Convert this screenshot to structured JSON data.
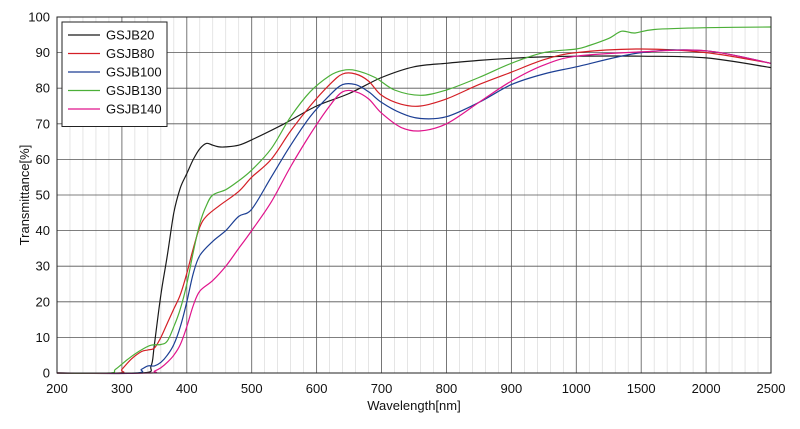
{
  "chart_data": {
    "type": "line",
    "xlabel": "Wavelength[nm]",
    "ylabel": "Transmittance[%]",
    "ylim": [
      0,
      100
    ],
    "y_ticks": [
      0,
      10,
      20,
      30,
      40,
      50,
      60,
      70,
      80,
      90,
      100
    ],
    "x_ticks": [
      200,
      300,
      400,
      500,
      600,
      700,
      800,
      900,
      1000,
      1500,
      2000,
      2500
    ],
    "x_scale": "piecewise: linear 200-1000 nm, then linear 1000-2500 nm compressed (1000 nm per two major divisions)",
    "grid": true,
    "legend_position": "top-left",
    "series": [
      {
        "name": "GSJB20",
        "color": "#1a1a1a",
        "points": [
          [
            200,
            0
          ],
          [
            330,
            0
          ],
          [
            345,
            2
          ],
          [
            350,
            8
          ],
          [
            360,
            22
          ],
          [
            370,
            33
          ],
          [
            380,
            45
          ],
          [
            390,
            52
          ],
          [
            400,
            56
          ],
          [
            410,
            60
          ],
          [
            420,
            63
          ],
          [
            430,
            64.5
          ],
          [
            440,
            64
          ],
          [
            450,
            63.5
          ],
          [
            460,
            63.5
          ],
          [
            480,
            64
          ],
          [
            500,
            65.5
          ],
          [
            550,
            70
          ],
          [
            600,
            75
          ],
          [
            650,
            78.5
          ],
          [
            700,
            83
          ],
          [
            750,
            86
          ],
          [
            800,
            87
          ],
          [
            850,
            87.8
          ],
          [
            900,
            88.4
          ],
          [
            950,
            88.8
          ],
          [
            1000,
            89
          ],
          [
            1500,
            89
          ],
          [
            2000,
            88.5
          ],
          [
            2500,
            85.8
          ]
        ]
      },
      {
        "name": "GSJB80",
        "color": "#d41f26",
        "points": [
          [
            200,
            0
          ],
          [
            295,
            0
          ],
          [
            300,
            1
          ],
          [
            315,
            4
          ],
          [
            330,
            6
          ],
          [
            340,
            6.5
          ],
          [
            350,
            7
          ],
          [
            360,
            10
          ],
          [
            370,
            14
          ],
          [
            380,
            18
          ],
          [
            390,
            22
          ],
          [
            400,
            28
          ],
          [
            410,
            35
          ],
          [
            420,
            41
          ],
          [
            430,
            44
          ],
          [
            450,
            47
          ],
          [
            480,
            51
          ],
          [
            500,
            55
          ],
          [
            530,
            60
          ],
          [
            560,
            68
          ],
          [
            590,
            75
          ],
          [
            620,
            81
          ],
          [
            640,
            84
          ],
          [
            660,
            84
          ],
          [
            680,
            82
          ],
          [
            700,
            78
          ],
          [
            730,
            75.5
          ],
          [
            760,
            75
          ],
          [
            800,
            77
          ],
          [
            850,
            81
          ],
          [
            900,
            84.5
          ],
          [
            950,
            88
          ],
          [
            1000,
            90
          ],
          [
            1500,
            91
          ],
          [
            2000,
            90
          ],
          [
            2500,
            87
          ]
        ]
      },
      {
        "name": "GSJB100",
        "color": "#1c3f94",
        "points": [
          [
            200,
            0
          ],
          [
            320,
            0
          ],
          [
            330,
            1
          ],
          [
            340,
            2
          ],
          [
            350,
            2
          ],
          [
            360,
            3
          ],
          [
            370,
            5
          ],
          [
            380,
            8
          ],
          [
            390,
            13
          ],
          [
            400,
            20
          ],
          [
            410,
            28
          ],
          [
            420,
            33
          ],
          [
            440,
            37
          ],
          [
            460,
            40
          ],
          [
            480,
            44
          ],
          [
            500,
            46
          ],
          [
            530,
            55
          ],
          [
            560,
            64
          ],
          [
            590,
            72
          ],
          [
            620,
            78
          ],
          [
            640,
            81
          ],
          [
            660,
            81
          ],
          [
            680,
            79
          ],
          [
            700,
            76
          ],
          [
            730,
            73
          ],
          [
            760,
            71.5
          ],
          [
            800,
            72
          ],
          [
            850,
            76
          ],
          [
            900,
            81
          ],
          [
            950,
            84
          ],
          [
            1000,
            86
          ],
          [
            1500,
            90
          ],
          [
            2000,
            90.5
          ],
          [
            2500,
            87
          ]
        ]
      },
      {
        "name": "GSJB130",
        "color": "#4caf38",
        "points": [
          [
            200,
            0
          ],
          [
            280,
            0
          ],
          [
            290,
            1
          ],
          [
            310,
            4
          ],
          [
            330,
            6.5
          ],
          [
            345,
            7.8
          ],
          [
            360,
            8
          ],
          [
            370,
            9
          ],
          [
            380,
            13
          ],
          [
            390,
            18
          ],
          [
            400,
            25
          ],
          [
            410,
            34
          ],
          [
            420,
            42
          ],
          [
            430,
            47
          ],
          [
            440,
            50
          ],
          [
            460,
            51.5
          ],
          [
            480,
            54
          ],
          [
            500,
            57
          ],
          [
            530,
            63
          ],
          [
            560,
            72
          ],
          [
            590,
            79
          ],
          [
            620,
            83.5
          ],
          [
            640,
            85
          ],
          [
            660,
            85
          ],
          [
            690,
            83
          ],
          [
            720,
            79.5
          ],
          [
            760,
            78
          ],
          [
            800,
            79.5
          ],
          [
            850,
            83
          ],
          [
            900,
            87
          ],
          [
            950,
            90
          ],
          [
            1000,
            91
          ],
          [
            1100,
            92
          ],
          [
            1250,
            94
          ],
          [
            1350,
            96
          ],
          [
            1450,
            95.5
          ],
          [
            1600,
            96.5
          ],
          [
            2000,
            97
          ],
          [
            2500,
            97.2
          ]
        ]
      },
      {
        "name": "GSJB140",
        "color": "#e0148c",
        "points": [
          [
            200,
            0
          ],
          [
            340,
            0
          ],
          [
            350,
            0.5
          ],
          [
            360,
            1.5
          ],
          [
            370,
            3
          ],
          [
            380,
            5
          ],
          [
            390,
            8
          ],
          [
            400,
            13
          ],
          [
            410,
            19
          ],
          [
            420,
            23
          ],
          [
            440,
            26
          ],
          [
            460,
            30
          ],
          [
            480,
            35
          ],
          [
            500,
            40
          ],
          [
            530,
            48
          ],
          [
            560,
            58
          ],
          [
            590,
            67
          ],
          [
            620,
            75
          ],
          [
            640,
            79
          ],
          [
            660,
            79
          ],
          [
            680,
            77
          ],
          [
            700,
            73
          ],
          [
            730,
            69
          ],
          [
            760,
            68
          ],
          [
            800,
            70
          ],
          [
            850,
            76
          ],
          [
            900,
            82
          ],
          [
            950,
            86.5
          ],
          [
            1000,
            89
          ],
          [
            1500,
            90.2
          ],
          [
            2000,
            90.5
          ],
          [
            2500,
            87
          ]
        ]
      }
    ]
  }
}
